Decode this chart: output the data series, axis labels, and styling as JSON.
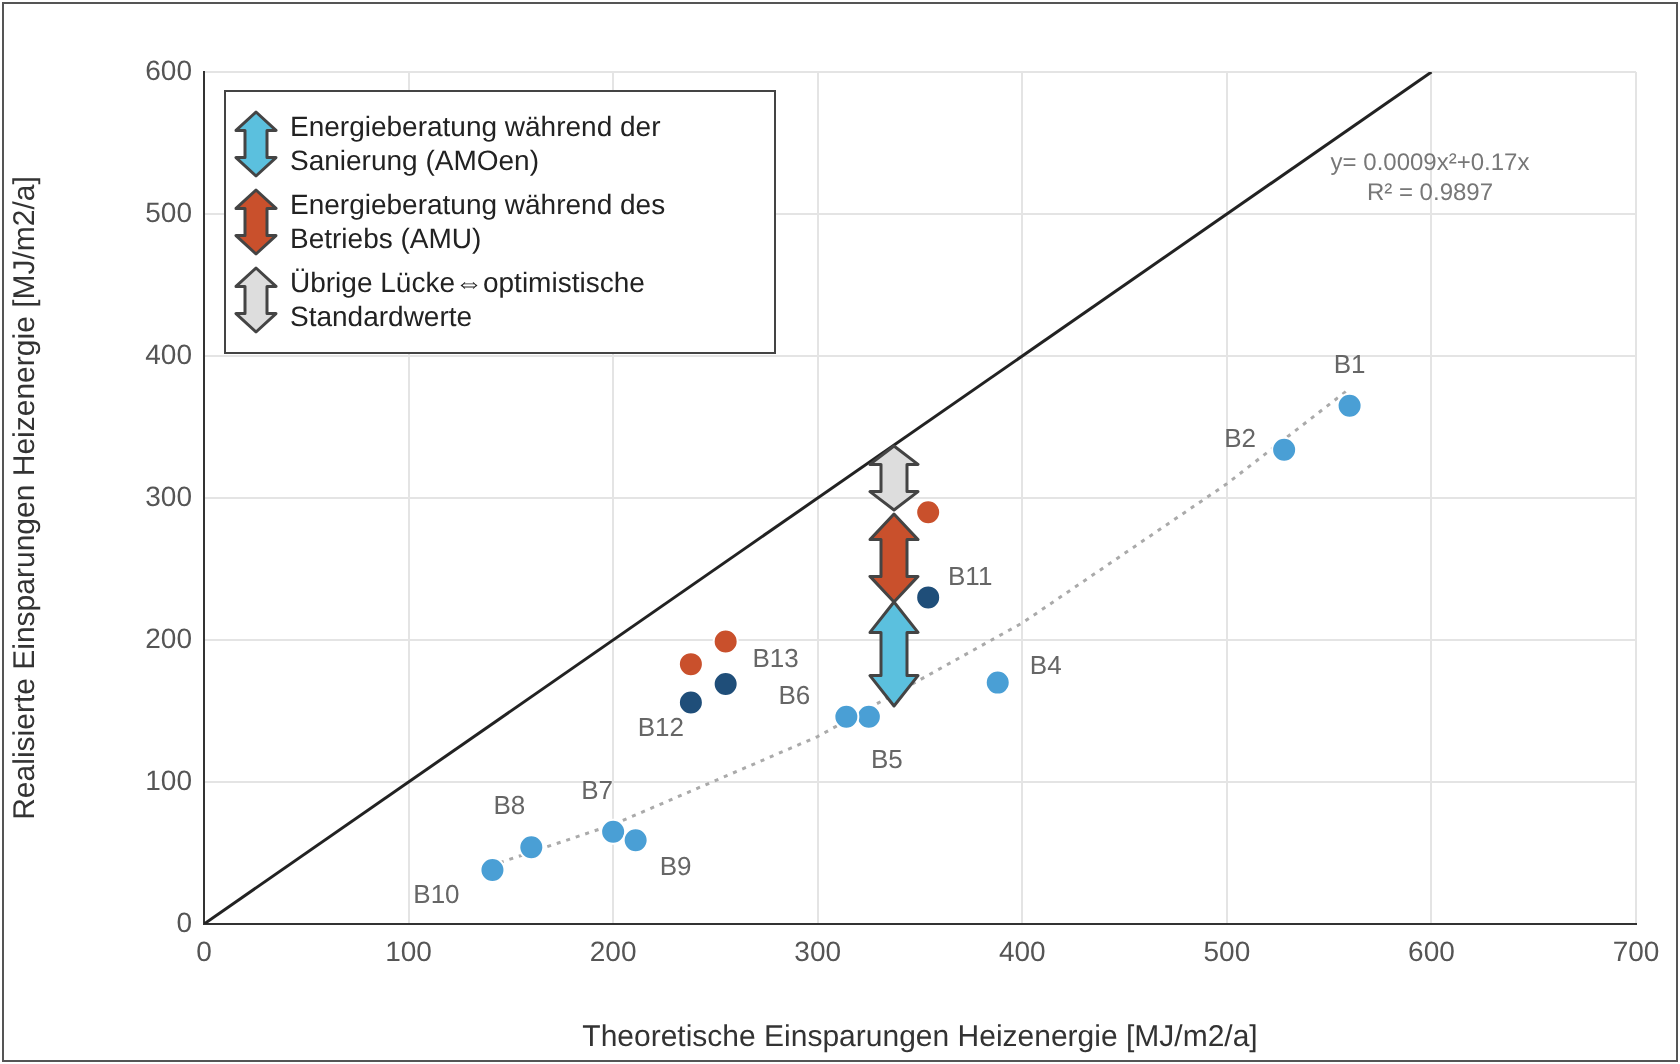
{
  "chart_data": {
    "type": "scatter",
    "xlabel": "Theoretische Einsparungen Heizenergie [MJ/m2/a]",
    "ylabel": "Realisierte Einsparungen Heizenergie [MJ/m2/a]",
    "xlim": [
      0,
      700
    ],
    "xticks": [
      0,
      100,
      200,
      300,
      400,
      500,
      600,
      700
    ],
    "ylim": [
      0,
      600
    ],
    "yticks": [
      0,
      100,
      200,
      300,
      400,
      500,
      600
    ],
    "grid": true,
    "marker": "circle",
    "series": [
      {
        "type": "line",
        "color": "#222222",
        "x": [
          0,
          600
        ],
        "values": [
          0,
          600
        ],
        "marker": "none",
        "line_style": "solid"
      },
      {
        "type": "line",
        "color": "#aaaaaa",
        "x": [
          140,
          200,
          300,
          400,
          500,
          560
        ],
        "values": [
          41,
          70,
          132,
          212,
          310,
          377
        ],
        "marker": "none",
        "line_style": "dotted"
      },
      {
        "color": "#4a9fd5",
        "x": [
          560,
          528,
          388,
          325,
          314,
          200,
          160,
          211,
          141
        ],
        "values": [
          365,
          334,
          170,
          146,
          146,
          65,
          54,
          59,
          38
        ]
      },
      {
        "color": "#1f4e79",
        "x": [
          354,
          238,
          255
        ],
        "values": [
          230,
          156,
          169
        ]
      },
      {
        "color": "#c9502c",
        "x": [
          354,
          238,
          255
        ],
        "values": [
          290,
          183,
          199
        ]
      }
    ],
    "annotations": [
      "Energieberatung während der Sanierung (AMOen)",
      "Energieberatung während des Betriebs (AMU)",
      "Übrige Lücke⇔optimistische Standardwerte",
      "y= 0.0009x²+0.17x",
      "R² = 0.9897",
      {
        "text": "B1",
        "x": 560,
        "y": 365
      },
      {
        "text": "B2",
        "x": 528,
        "y": 334
      },
      {
        "text": "B4",
        "x": 388,
        "y": 170
      },
      {
        "text": "B5",
        "x": 325,
        "y": 146
      },
      {
        "text": "B6",
        "x": 314,
        "y": 146
      },
      {
        "text": "B7",
        "x": 200,
        "y": 65
      },
      {
        "text": "B8",
        "x": 160,
        "y": 54
      },
      {
        "text": "B9",
        "x": 211,
        "y": 59
      },
      {
        "text": "B10",
        "x": 141,
        "y": 38
      },
      {
        "text": "B11",
        "x": 354,
        "y": 230
      },
      {
        "text": "B12",
        "x": 238,
        "y": 156
      },
      {
        "text": "B13",
        "x": 255,
        "y": 169
      }
    ]
  }
}
